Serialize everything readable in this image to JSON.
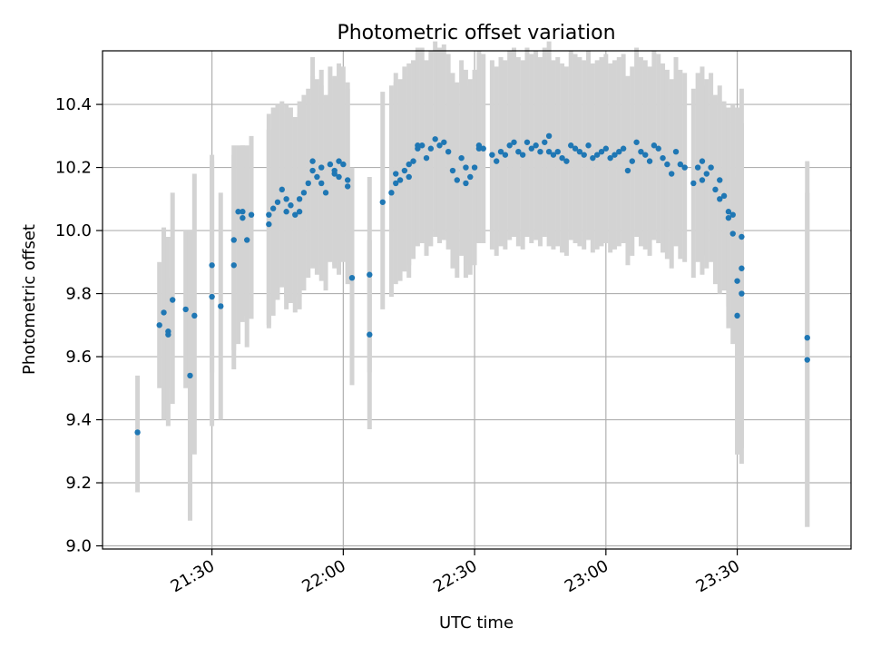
{
  "chart_data": {
    "type": "scatter",
    "title": "Photometric offset variation",
    "xlabel": "UTC time",
    "ylabel": "Photometric offset",
    "x_unit": "UTC time (HH:MM)",
    "xlim": [
      "21:05",
      "23:56"
    ],
    "ylim": [
      8.99,
      10.57
    ],
    "x_ticks": [
      "21:30",
      "22:00",
      "22:30",
      "23:00",
      "23:30"
    ],
    "y_ticks": [
      "9.0",
      "9.2",
      "9.4",
      "9.6",
      "9.8",
      "10.0",
      "10.2",
      "10.4"
    ],
    "grid": true,
    "colors": {
      "points": "#1f77b4",
      "error_bars": "#d3d3d3",
      "grid": "#b0b0b0"
    },
    "series": [
      {
        "x": [
          "21:13",
          "21:18",
          "21:19",
          "21:20",
          "21:20",
          "21:21",
          "21:24",
          "21:25",
          "21:26",
          "21:30",
          "21:30",
          "21:32",
          "21:35",
          "21:35",
          "21:36",
          "21:37",
          "21:37",
          "21:38",
          "21:39",
          "21:43",
          "21:43",
          "21:44",
          "21:45",
          "21:46",
          "21:47",
          "21:47",
          "21:48",
          "21:49",
          "21:50",
          "21:50",
          "21:51",
          "21:52",
          "21:53",
          "21:53",
          "21:54",
          "21:55",
          "21:55",
          "21:56",
          "21:57",
          "21:58",
          "21:58",
          "21:59",
          "21:59",
          "22:00",
          "22:01",
          "22:01",
          "22:02",
          "22:06",
          "22:06",
          "22:09",
          "22:11",
          "22:12",
          "22:12",
          "22:13",
          "22:14",
          "22:15",
          "22:15",
          "22:16",
          "22:17",
          "22:17",
          "22:18",
          "22:19",
          "22:20",
          "22:21",
          "22:22",
          "22:23",
          "22:24",
          "22:25",
          "22:26",
          "22:27",
          "22:28",
          "22:28",
          "22:29",
          "22:30",
          "22:31",
          "22:31",
          "22:32",
          "22:34",
          "22:35",
          "22:36",
          "22:37",
          "22:38",
          "22:39",
          "22:40",
          "22:41",
          "22:42",
          "22:43",
          "22:44",
          "22:45",
          "22:46",
          "22:47",
          "22:47",
          "22:48",
          "22:49",
          "22:50",
          "22:51",
          "22:52",
          "22:53",
          "22:54",
          "22:55",
          "22:56",
          "22:57",
          "22:58",
          "22:59",
          "23:00",
          "23:01",
          "23:02",
          "23:03",
          "23:04",
          "23:05",
          "23:06",
          "23:07",
          "23:08",
          "23:09",
          "23:10",
          "23:11",
          "23:12",
          "23:13",
          "23:14",
          "23:15",
          "23:16",
          "23:17",
          "23:18",
          "23:20",
          "23:21",
          "23:22",
          "23:22",
          "23:23",
          "23:24",
          "23:25",
          "23:26",
          "23:26",
          "23:27",
          "23:28",
          "23:28",
          "23:29",
          "23:29",
          "23:30",
          "23:30",
          "23:31",
          "23:31",
          "23:31",
          "23:46",
          "23:46"
        ],
        "y": [
          9.36,
          9.7,
          9.74,
          9.68,
          9.67,
          9.78,
          9.75,
          9.54,
          9.73,
          9.79,
          9.89,
          9.76,
          9.89,
          9.97,
          10.06,
          10.04,
          10.06,
          9.97,
          10.05,
          10.02,
          10.05,
          10.07,
          10.09,
          10.13,
          10.1,
          10.06,
          10.08,
          10.05,
          10.06,
          10.1,
          10.12,
          10.15,
          10.19,
          10.22,
          10.17,
          10.15,
          10.2,
          10.12,
          10.21,
          10.18,
          10.19,
          10.22,
          10.17,
          10.21,
          10.16,
          10.14,
          9.85,
          9.86,
          9.67,
          10.09,
          10.12,
          10.15,
          10.18,
          10.16,
          10.19,
          10.17,
          10.21,
          10.22,
          10.27,
          10.26,
          10.27,
          10.23,
          10.26,
          10.29,
          10.27,
          10.28,
          10.25,
          10.19,
          10.16,
          10.23,
          10.15,
          10.2,
          10.17,
          10.2,
          10.26,
          10.27,
          10.26,
          10.24,
          10.22,
          10.25,
          10.24,
          10.27,
          10.28,
          10.25,
          10.24,
          10.28,
          10.26,
          10.27,
          10.25,
          10.28,
          10.3,
          10.25,
          10.24,
          10.25,
          10.23,
          10.22,
          10.27,
          10.26,
          10.25,
          10.24,
          10.27,
          10.23,
          10.24,
          10.25,
          10.26,
          10.23,
          10.24,
          10.25,
          10.26,
          10.19,
          10.22,
          10.28,
          10.25,
          10.24,
          10.22,
          10.27,
          10.26,
          10.23,
          10.21,
          10.18,
          10.25,
          10.21,
          10.2,
          10.15,
          10.2,
          10.22,
          10.16,
          10.18,
          10.2,
          10.13,
          10.16,
          10.1,
          10.11,
          10.06,
          10.04,
          10.05,
          9.99,
          9.73,
          9.84,
          9.88,
          9.8,
          9.98,
          9.66,
          9.59
        ],
        "y_low": [
          9.17,
          9.5,
          9.4,
          9.38,
          9.5,
          9.45,
          9.5,
          9.08,
          9.29,
          9.38,
          9.55,
          9.4,
          9.56,
          9.62,
          9.64,
          9.73,
          9.71,
          9.63,
          9.72,
          9.7,
          9.69,
          9.73,
          9.78,
          9.82,
          9.79,
          9.75,
          9.77,
          9.74,
          9.75,
          9.79,
          9.81,
          9.85,
          9.89,
          9.88,
          9.86,
          9.84,
          9.89,
          9.81,
          9.9,
          9.88,
          9.89,
          9.91,
          9.86,
          9.9,
          9.85,
          9.83,
          9.51,
          9.55,
          9.37,
          9.75,
          9.79,
          9.83,
          9.86,
          9.84,
          9.87,
          9.85,
          9.89,
          9.91,
          9.96,
          9.95,
          9.96,
          9.92,
          9.95,
          9.98,
          9.96,
          9.97,
          9.94,
          9.88,
          9.85,
          9.92,
          9.85,
          9.89,
          9.86,
          9.89,
          9.96,
          9.97,
          9.96,
          9.94,
          9.92,
          9.95,
          9.94,
          9.97,
          9.98,
          9.95,
          9.94,
          9.98,
          9.96,
          9.97,
          9.95,
          9.98,
          10.0,
          9.95,
          9.94,
          9.95,
          9.93,
          9.92,
          9.97,
          9.96,
          9.95,
          9.94,
          9.97,
          9.93,
          9.94,
          9.95,
          9.96,
          9.93,
          9.94,
          9.95,
          9.96,
          9.89,
          9.92,
          9.98,
          9.95,
          9.94,
          9.92,
          9.97,
          9.96,
          9.93,
          9.91,
          9.88,
          9.95,
          9.91,
          9.9,
          9.85,
          9.9,
          9.92,
          9.86,
          9.88,
          9.9,
          9.83,
          9.86,
          9.8,
          9.81,
          9.76,
          9.69,
          9.7,
          9.64,
          9.29,
          9.29,
          9.31,
          9.26,
          9.62,
          9.06,
          9.06
        ],
        "y_high": [
          9.54,
          9.9,
          10.01,
          9.98,
          9.85,
          10.12,
          10.0,
          10.0,
          10.18,
          10.22,
          10.24,
          10.12,
          10.24,
          10.27,
          10.27,
          10.27,
          10.27,
          10.27,
          10.3,
          10.32,
          10.37,
          10.39,
          10.4,
          10.41,
          10.4,
          10.37,
          10.39,
          10.36,
          10.37,
          10.41,
          10.43,
          10.45,
          10.49,
          10.55,
          10.48,
          10.46,
          10.51,
          10.43,
          10.52,
          10.48,
          10.49,
          10.53,
          10.48,
          10.52,
          10.47,
          10.45,
          10.2,
          10.17,
          9.97,
          10.44,
          10.46,
          10.47,
          10.5,
          10.48,
          10.52,
          10.49,
          10.53,
          10.54,
          10.58,
          10.57,
          10.58,
          10.54,
          10.57,
          10.6,
          10.58,
          10.59,
          10.56,
          10.5,
          10.47,
          10.54,
          10.46,
          10.51,
          10.48,
          10.51,
          10.56,
          10.57,
          10.56,
          10.54,
          10.52,
          10.55,
          10.54,
          10.57,
          10.58,
          10.55,
          10.54,
          10.58,
          10.56,
          10.57,
          10.55,
          10.58,
          10.6,
          10.55,
          10.54,
          10.55,
          10.53,
          10.52,
          10.57,
          10.56,
          10.55,
          10.54,
          10.57,
          10.53,
          10.54,
          10.55,
          10.56,
          10.53,
          10.54,
          10.55,
          10.56,
          10.49,
          10.52,
          10.58,
          10.55,
          10.54,
          10.52,
          10.57,
          10.56,
          10.53,
          10.51,
          10.48,
          10.55,
          10.51,
          10.5,
          10.45,
          10.5,
          10.52,
          10.46,
          10.48,
          10.5,
          10.43,
          10.46,
          10.4,
          10.41,
          10.36,
          10.39,
          10.4,
          10.34,
          10.17,
          10.39,
          10.45,
          10.34,
          10.34,
          10.22,
          10.12
        ]
      }
    ]
  }
}
